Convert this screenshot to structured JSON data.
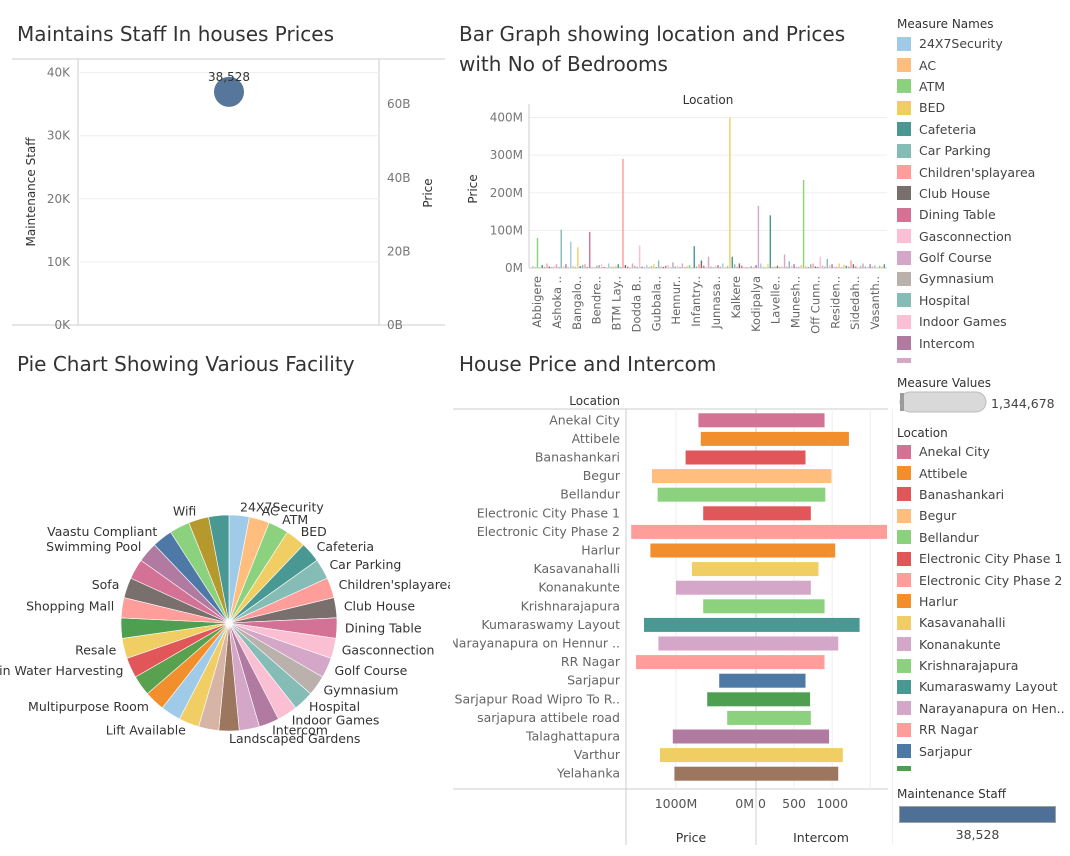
{
  "titles": {
    "scatter": "Maintains Staff In houses Prices",
    "bar_line1": "Bar Graph showing location  and Prices",
    "bar_line2": "with No of Bedrooms",
    "pie": "Pie Chart Showing Various Facility",
    "hbar": "House Price and Intercom"
  },
  "chart_data": [
    {
      "type": "scatter",
      "ylabel": "Maintenance Staff",
      "y2label": "Price",
      "y_ticks": [
        "40K",
        "30K",
        "20K",
        "10K",
        "0K"
      ],
      "y2_ticks": [
        "60B",
        "40B",
        "20B",
        "0B"
      ],
      "ylim": [
        0,
        42000
      ],
      "y2lim": [
        0,
        72
      ],
      "points": [
        {
          "y": 38528,
          "label": "38,528"
        }
      ]
    },
    {
      "type": "bar",
      "title_top": "Location",
      "ylabel": "Price",
      "y_ticks": [
        "400M",
        "300M",
        "200M",
        "100M",
        "0M"
      ],
      "ylim": [
        0,
        420
      ],
      "categories": [
        "Abbigere",
        "Ashoka ..",
        "Bangalo..",
        "Bendre..",
        "BTM Lay..",
        "Dodda B..",
        "Gubbala..",
        "Hennur..",
        "Infantry..",
        "Junnasa..",
        "Kalkere",
        "Kodipalya",
        "Lavelle..",
        "Munesh..",
        "Off Cunn..",
        "Residen..",
        "Sidedah..",
        "Vasanth.."
      ],
      "bar_values": [
        5,
        3,
        80,
        2,
        8,
        3,
        12,
        4,
        2,
        6,
        10,
        3,
        102,
        5,
        10,
        2,
        70,
        6,
        3,
        55,
        5,
        8,
        10,
        2,
        96,
        4,
        2,
        6,
        8,
        10,
        3,
        2,
        12,
        4,
        3,
        6,
        10,
        3,
        290,
        8,
        4,
        2,
        12,
        6,
        3,
        60,
        4,
        2,
        8,
        3,
        5,
        10,
        2,
        20,
        4,
        3,
        6,
        8,
        2,
        15,
        4,
        6,
        2,
        12,
        3,
        5,
        8,
        2,
        58,
        4,
        10,
        20,
        6,
        3,
        30,
        4,
        2,
        6,
        8,
        4,
        12,
        2,
        5,
        400,
        30,
        10,
        4,
        12,
        6,
        3,
        3,
        2,
        5,
        4,
        8,
        165,
        12,
        4,
        2,
        10,
        140,
        3,
        4,
        6,
        2,
        5,
        36,
        4,
        18,
        6,
        10,
        3,
        4,
        8,
        234,
        6,
        2,
        10,
        12,
        4,
        3,
        30,
        6,
        4,
        24,
        8,
        10,
        3,
        4,
        12,
        2,
        8,
        6,
        4,
        20,
        10,
        4,
        2,
        6,
        12,
        4,
        3,
        10,
        4,
        8,
        2,
        6,
        4,
        10
      ]
    },
    {
      "type": "pie",
      "slices": [
        {
          "name": "24X7Security",
          "value": 1,
          "color": "#a0cbe8"
        },
        {
          "name": "AC",
          "value": 1,
          "color": "#ffbe7d"
        },
        {
          "name": "ATM",
          "value": 1,
          "color": "#8cd17d"
        },
        {
          "name": "BED",
          "value": 1,
          "color": "#f1ce63"
        },
        {
          "name": "Cafeteria",
          "value": 1,
          "color": "#499894"
        },
        {
          "name": "Car Parking",
          "value": 1,
          "color": "#86bcb6"
        },
        {
          "name": "Children'splayarea",
          "value": 1,
          "color": "#ff9d9a"
        },
        {
          "name": "Club House",
          "value": 1,
          "color": "#79706e"
        },
        {
          "name": "Dining Table",
          "value": 1,
          "color": "#d37295"
        },
        {
          "name": "Gasconnection",
          "value": 1,
          "color": "#fabfd2"
        },
        {
          "name": "Golf Course",
          "value": 1,
          "color": "#d4a6c8"
        },
        {
          "name": "Gymnasium",
          "value": 1,
          "color": "#bab0ac"
        },
        {
          "name": "Hospital",
          "value": 1,
          "color": "#86bcb6"
        },
        {
          "name": "Indoor Games",
          "value": 1,
          "color": "#fabfd2"
        },
        {
          "name": "Intercom",
          "value": 1,
          "color": "#b07aa1"
        },
        {
          "name": "",
          "value": 1,
          "color": "#d4a6c8"
        },
        {
          "name": "Landscaped Gardens",
          "value": 1,
          "color": "#9d7660"
        },
        {
          "name": "",
          "value": 1,
          "color": "#d7b5a6"
        },
        {
          "name": "Lift Available",
          "value": 1,
          "color": "#f1ce63"
        },
        {
          "name": "",
          "value": 1,
          "color": "#a0cbe8"
        },
        {
          "name": "Multipurpose Room",
          "value": 1,
          "color": "#f28e2b"
        },
        {
          "name": "",
          "value": 1,
          "color": "#59a14f"
        },
        {
          "name": "Rain Water Harvesting",
          "value": 1,
          "color": "#e15759"
        },
        {
          "name": "Resale",
          "value": 1,
          "color": "#f1ce63"
        },
        {
          "name": "",
          "value": 1,
          "color": "#4e9f50"
        },
        {
          "name": "Shopping Mall",
          "value": 1,
          "color": "#ff9d9a"
        },
        {
          "name": "Sofa",
          "value": 1,
          "color": "#79706e"
        },
        {
          "name": "",
          "value": 1,
          "color": "#d37295"
        },
        {
          "name": "Swimming Pool",
          "value": 1,
          "color": "#b07aa1"
        },
        {
          "name": "Vaastu Compliant",
          "value": 1,
          "color": "#4e79a7"
        },
        {
          "name": "",
          "value": 1,
          "color": "#8cd17d"
        },
        {
          "name": "Wifi",
          "value": 1,
          "color": "#b6992d"
        },
        {
          "name": "",
          "value": 1,
          "color": "#499894"
        }
      ]
    },
    {
      "type": "bar",
      "orientation": "horizontal-diverging",
      "row_header": "Location",
      "left_label": "Price",
      "right_label": "Intercom",
      "left_ticks": [
        "1000M",
        "0M"
      ],
      "right_ticks": [
        "0",
        "500",
        "1000"
      ],
      "left_max": 1600,
      "right_max": 1720,
      "rows": [
        {
          "location": "Anekal City",
          "price": 720,
          "intercom": 900,
          "color": "#d37295"
        },
        {
          "location": "Attibele",
          "price": 690,
          "intercom": 1220,
          "color": "#f28e2b"
        },
        {
          "location": "Banashankari",
          "price": 880,
          "intercom": 650,
          "color": "#e15759"
        },
        {
          "location": "Begur",
          "price": 1300,
          "intercom": 990,
          "color": "#ffbe7d"
        },
        {
          "location": "Bellandur",
          "price": 1230,
          "intercom": 910,
          "color": "#8cd17d"
        },
        {
          "location": "Electronic City Phase 1",
          "price": 660,
          "intercom": 720,
          "color": "#e15759"
        },
        {
          "location": "Electronic City Phase 2",
          "price": 1560,
          "intercom": 1720,
          "color": "#ff9d9a"
        },
        {
          "location": "Harlur",
          "price": 1320,
          "intercom": 1040,
          "color": "#f28e2b"
        },
        {
          "location": "Kasavanahalli",
          "price": 800,
          "intercom": 820,
          "color": "#f1ce63"
        },
        {
          "location": "Konanakunte",
          "price": 1000,
          "intercom": 720,
          "color": "#d4a6c8"
        },
        {
          "location": "Krishnarajapura",
          "price": 660,
          "intercom": 900,
          "color": "#8cd17d"
        },
        {
          "location": "Kumaraswamy Layout",
          "price": 1400,
          "intercom": 1360,
          "color": "#499894"
        },
        {
          "location": "Narayanapura on Hennur ..",
          "price": 1220,
          "intercom": 1080,
          "color": "#d4a6c8"
        },
        {
          "location": "RR Nagar",
          "price": 1500,
          "intercom": 900,
          "color": "#ff9d9a"
        },
        {
          "location": "Sarjapur",
          "price": 460,
          "intercom": 650,
          "color": "#4e79a7"
        },
        {
          "location": "Sarjapur Road Wipro To R..",
          "price": 610,
          "intercom": 710,
          "color": "#4e9f50"
        },
        {
          "location": "sarjapura attibele road",
          "price": 360,
          "intercom": 720,
          "color": "#8cd17d"
        },
        {
          "location": "Talaghattapura",
          "price": 1040,
          "intercom": 960,
          "color": "#b07aa1"
        },
        {
          "location": "Varthur",
          "price": 1200,
          "intercom": 1140,
          "color": "#f1ce63"
        },
        {
          "location": "Yelahanka",
          "price": 1020,
          "intercom": 1080,
          "color": "#9d7660"
        }
      ]
    }
  ],
  "legend_measure_names": {
    "title": "Measure Names",
    "items": [
      {
        "label": "24X7Security",
        "color": "#a0cbe8"
      },
      {
        "label": "AC",
        "color": "#ffbe7d"
      },
      {
        "label": "ATM",
        "color": "#8cd17d"
      },
      {
        "label": "BED",
        "color": "#f1ce63"
      },
      {
        "label": "Cafeteria",
        "color": "#499894"
      },
      {
        "label": "Car Parking",
        "color": "#86bcb6"
      },
      {
        "label": "Children'splayarea",
        "color": "#ff9d9a"
      },
      {
        "label": "Club House",
        "color": "#79706e"
      },
      {
        "label": "Dining Table",
        "color": "#d37295"
      },
      {
        "label": "Gasconnection",
        "color": "#fabfd2"
      },
      {
        "label": "Golf Course",
        "color": "#d4a6c8"
      },
      {
        "label": "Gymnasium",
        "color": "#bab0ac"
      },
      {
        "label": "Hospital",
        "color": "#86bcb6"
      },
      {
        "label": "Indoor Games",
        "color": "#fabfd2"
      },
      {
        "label": "Intercom",
        "color": "#b07aa1"
      },
      {
        "label": "",
        "color": "#d4a6c8"
      }
    ]
  },
  "measure_values": {
    "title": "Measure Values",
    "value": "1,344,678"
  },
  "legend_location": {
    "title": "Location",
    "items": [
      {
        "label": "Anekal City",
        "color": "#d37295"
      },
      {
        "label": "Attibele",
        "color": "#f28e2b"
      },
      {
        "label": "Banashankari",
        "color": "#e15759"
      },
      {
        "label": "Begur",
        "color": "#ffbe7d"
      },
      {
        "label": "Bellandur",
        "color": "#8cd17d"
      },
      {
        "label": "Electronic City Phase 1",
        "color": "#e15759"
      },
      {
        "label": "Electronic City Phase 2",
        "color": "#ff9d9a"
      },
      {
        "label": "Harlur",
        "color": "#f28e2b"
      },
      {
        "label": "Kasavanahalli",
        "color": "#f1ce63"
      },
      {
        "label": "Konanakunte",
        "color": "#d4a6c8"
      },
      {
        "label": "Krishnarajapura",
        "color": "#8cd17d"
      },
      {
        "label": "Kumaraswamy Layout",
        "color": "#499894"
      },
      {
        "label": "Narayanapura on Hen..",
        "color": "#d4a6c8"
      },
      {
        "label": "RR Nagar",
        "color": "#ff9d9a"
      },
      {
        "label": "Sarjapur",
        "color": "#4e79a7"
      },
      {
        "label": "",
        "color": "#4e9f50"
      }
    ]
  },
  "maintenance_staff": {
    "title": "Maintenance Staff",
    "value": "38,528",
    "color": "#4e6f96"
  }
}
